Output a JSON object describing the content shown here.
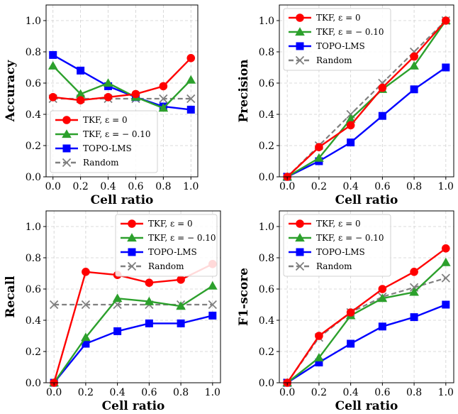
{
  "chart_data": [
    {
      "type": "line",
      "x": [
        0.0,
        0.2,
        0.4,
        0.6,
        0.8,
        1.0
      ],
      "xlabel": "Cell ratio",
      "ylabel": "Accuracy",
      "xlim": [
        -0.05,
        1.05
      ],
      "ylim": [
        0.0,
        1.1
      ],
      "xticks": [
        "0.0",
        "0.2",
        "0.4",
        "0.6",
        "0.8",
        "1.0"
      ],
      "yticks": [
        "0.0",
        "0.2",
        "0.4",
        "0.6",
        "0.8",
        "1.0"
      ],
      "grid": true,
      "legend_position": "bottom-left",
      "series": [
        {
          "name": "TKF, ε = 0",
          "values": [
            0.51,
            0.49,
            0.51,
            0.53,
            0.58,
            0.76
          ],
          "color": "#ff0000",
          "marker": "circle",
          "dash": false
        },
        {
          "name": "TKF, ε = − 0.10",
          "values": [
            0.71,
            0.53,
            0.6,
            0.51,
            0.44,
            0.62
          ],
          "color": "#2ca02c",
          "marker": "triangle",
          "dash": false
        },
        {
          "name": "TOPO-LMS",
          "values": [
            0.78,
            0.68,
            0.58,
            0.51,
            0.45,
            0.43
          ],
          "color": "#0000ff",
          "marker": "square",
          "dash": false
        },
        {
          "name": "Random",
          "values": [
            0.5,
            0.5,
            0.5,
            0.5,
            0.5,
            0.5
          ],
          "color": "#808080",
          "marker": "x",
          "dash": true
        }
      ]
    },
    {
      "type": "line",
      "x": [
        0.0,
        0.2,
        0.4,
        0.6,
        0.8,
        1.0
      ],
      "xlabel": "Cell ratio",
      "ylabel": "Precision",
      "xlim": [
        -0.05,
        1.05
      ],
      "ylim": [
        0.0,
        1.1
      ],
      "xticks": [
        "0.0",
        "0.2",
        "0.4",
        "0.6",
        "0.8",
        "1.0"
      ],
      "yticks": [
        "0.0",
        "0.2",
        "0.4",
        "0.6",
        "0.8",
        "1.0"
      ],
      "grid": true,
      "legend_position": "top-left",
      "series": [
        {
          "name": "TKF, ε = 0",
          "values": [
            0.0,
            0.19,
            0.33,
            0.57,
            0.77,
            1.0
          ],
          "color": "#ff0000",
          "marker": "circle",
          "dash": false
        },
        {
          "name": "TKF, ε = − 0.10",
          "values": [
            0.0,
            0.12,
            0.37,
            0.56,
            0.71,
            1.0
          ],
          "color": "#2ca02c",
          "marker": "triangle",
          "dash": false
        },
        {
          "name": "TOPO-LMS",
          "values": [
            0.0,
            0.1,
            0.22,
            0.39,
            0.56,
            0.7
          ],
          "color": "#0000ff",
          "marker": "square",
          "dash": false
        },
        {
          "name": "Random",
          "values": [
            0.0,
            0.2,
            0.4,
            0.6,
            0.8,
            1.0
          ],
          "color": "#808080",
          "marker": "x",
          "dash": true
        }
      ]
    },
    {
      "type": "line",
      "x": [
        0.0,
        0.2,
        0.4,
        0.6,
        0.8,
        1.0
      ],
      "xlabel": "Cell ratio",
      "ylabel": "Recall",
      "xlim": [
        -0.05,
        1.05
      ],
      "ylim": [
        0.0,
        1.1
      ],
      "xticks": [
        "0.0",
        "0.2",
        "0.4",
        "0.6",
        "0.8",
        "1.0"
      ],
      "yticks": [
        "0.0",
        "0.2",
        "0.4",
        "0.6",
        "0.8",
        "1.0"
      ],
      "grid": true,
      "legend_position": "top-right",
      "series": [
        {
          "name": "TKF, ε = 0",
          "values": [
            0.0,
            0.71,
            0.69,
            0.64,
            0.66,
            0.76
          ],
          "color": "#ff0000",
          "marker": "circle",
          "dash": false
        },
        {
          "name": "TKF, ε = − 0.10",
          "values": [
            0.0,
            0.29,
            0.54,
            0.52,
            0.49,
            0.62
          ],
          "color": "#2ca02c",
          "marker": "triangle",
          "dash": false
        },
        {
          "name": "TOPO-LMS",
          "values": [
            0.0,
            0.25,
            0.33,
            0.38,
            0.38,
            0.43
          ],
          "color": "#0000ff",
          "marker": "square",
          "dash": false
        },
        {
          "name": "Random",
          "values": [
            0.5,
            0.5,
            0.5,
            0.5,
            0.5,
            0.5
          ],
          "color": "#808080",
          "marker": "x",
          "dash": true
        }
      ]
    },
    {
      "type": "line",
      "x": [
        0.0,
        0.2,
        0.4,
        0.6,
        0.8,
        1.0
      ],
      "xlabel": "Cell ratio",
      "ylabel": "F1-score",
      "xlim": [
        -0.05,
        1.05
      ],
      "ylim": [
        0.0,
        1.1
      ],
      "xticks": [
        "0.0",
        "0.2",
        "0.4",
        "0.6",
        "0.8",
        "1.0"
      ],
      "yticks": [
        "0.0",
        "0.2",
        "0.4",
        "0.6",
        "0.8",
        "1.0"
      ],
      "grid": true,
      "legend_position": "top-left",
      "series": [
        {
          "name": "TKF, ε = 0",
          "values": [
            0.0,
            0.3,
            0.45,
            0.6,
            0.71,
            0.86
          ],
          "color": "#ff0000",
          "marker": "circle",
          "dash": false
        },
        {
          "name": "TKF, ε = − 0.10",
          "values": [
            0.0,
            0.16,
            0.43,
            0.54,
            0.58,
            0.77
          ],
          "color": "#2ca02c",
          "marker": "triangle",
          "dash": false
        },
        {
          "name": "TOPO-LMS",
          "values": [
            0.0,
            0.13,
            0.25,
            0.36,
            0.42,
            0.5
          ],
          "color": "#0000ff",
          "marker": "square",
          "dash": false
        },
        {
          "name": "Random",
          "values": [
            0.0,
            0.29,
            0.45,
            0.55,
            0.61,
            0.67
          ],
          "color": "#808080",
          "marker": "x",
          "dash": true
        }
      ]
    }
  ]
}
